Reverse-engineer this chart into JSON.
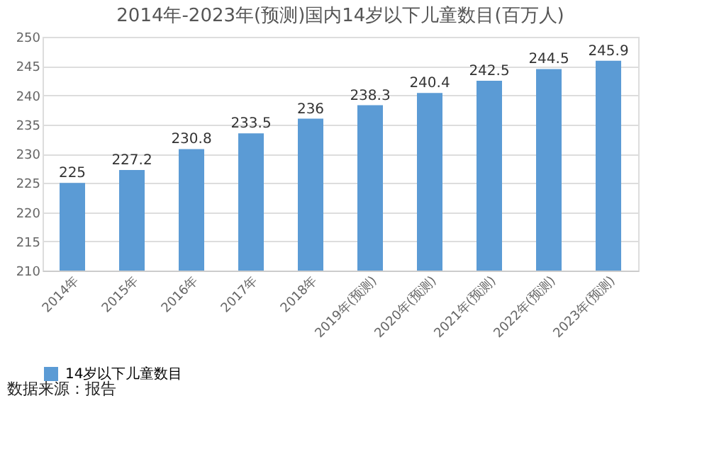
{
  "chart_data": {
    "type": "bar",
    "title": "2014年-2023年(预测)国内14岁以下儿童数目(百万人)",
    "categories": [
      "2014年",
      "2015年",
      "2016年",
      "2017年",
      "2018年",
      "2019年(预测)",
      "2020年(预测)",
      "2021年(预测)",
      "2022年(预测)",
      "2023年(预测)"
    ],
    "series": [
      {
        "name": "14岁以下儿童数目",
        "color": "#5b9bd5",
        "values": [
          225,
          227.2,
          230.8,
          233.5,
          236,
          238.3,
          240.4,
          242.5,
          244.5,
          245.9
        ]
      }
    ],
    "ylim": [
      210,
      250
    ],
    "yticks": [
      210,
      215,
      220,
      225,
      230,
      235,
      240,
      245,
      250
    ],
    "grid": "y",
    "legend": "bottom",
    "data_labels": true,
    "annotations": [
      "数据来源：报告"
    ]
  }
}
